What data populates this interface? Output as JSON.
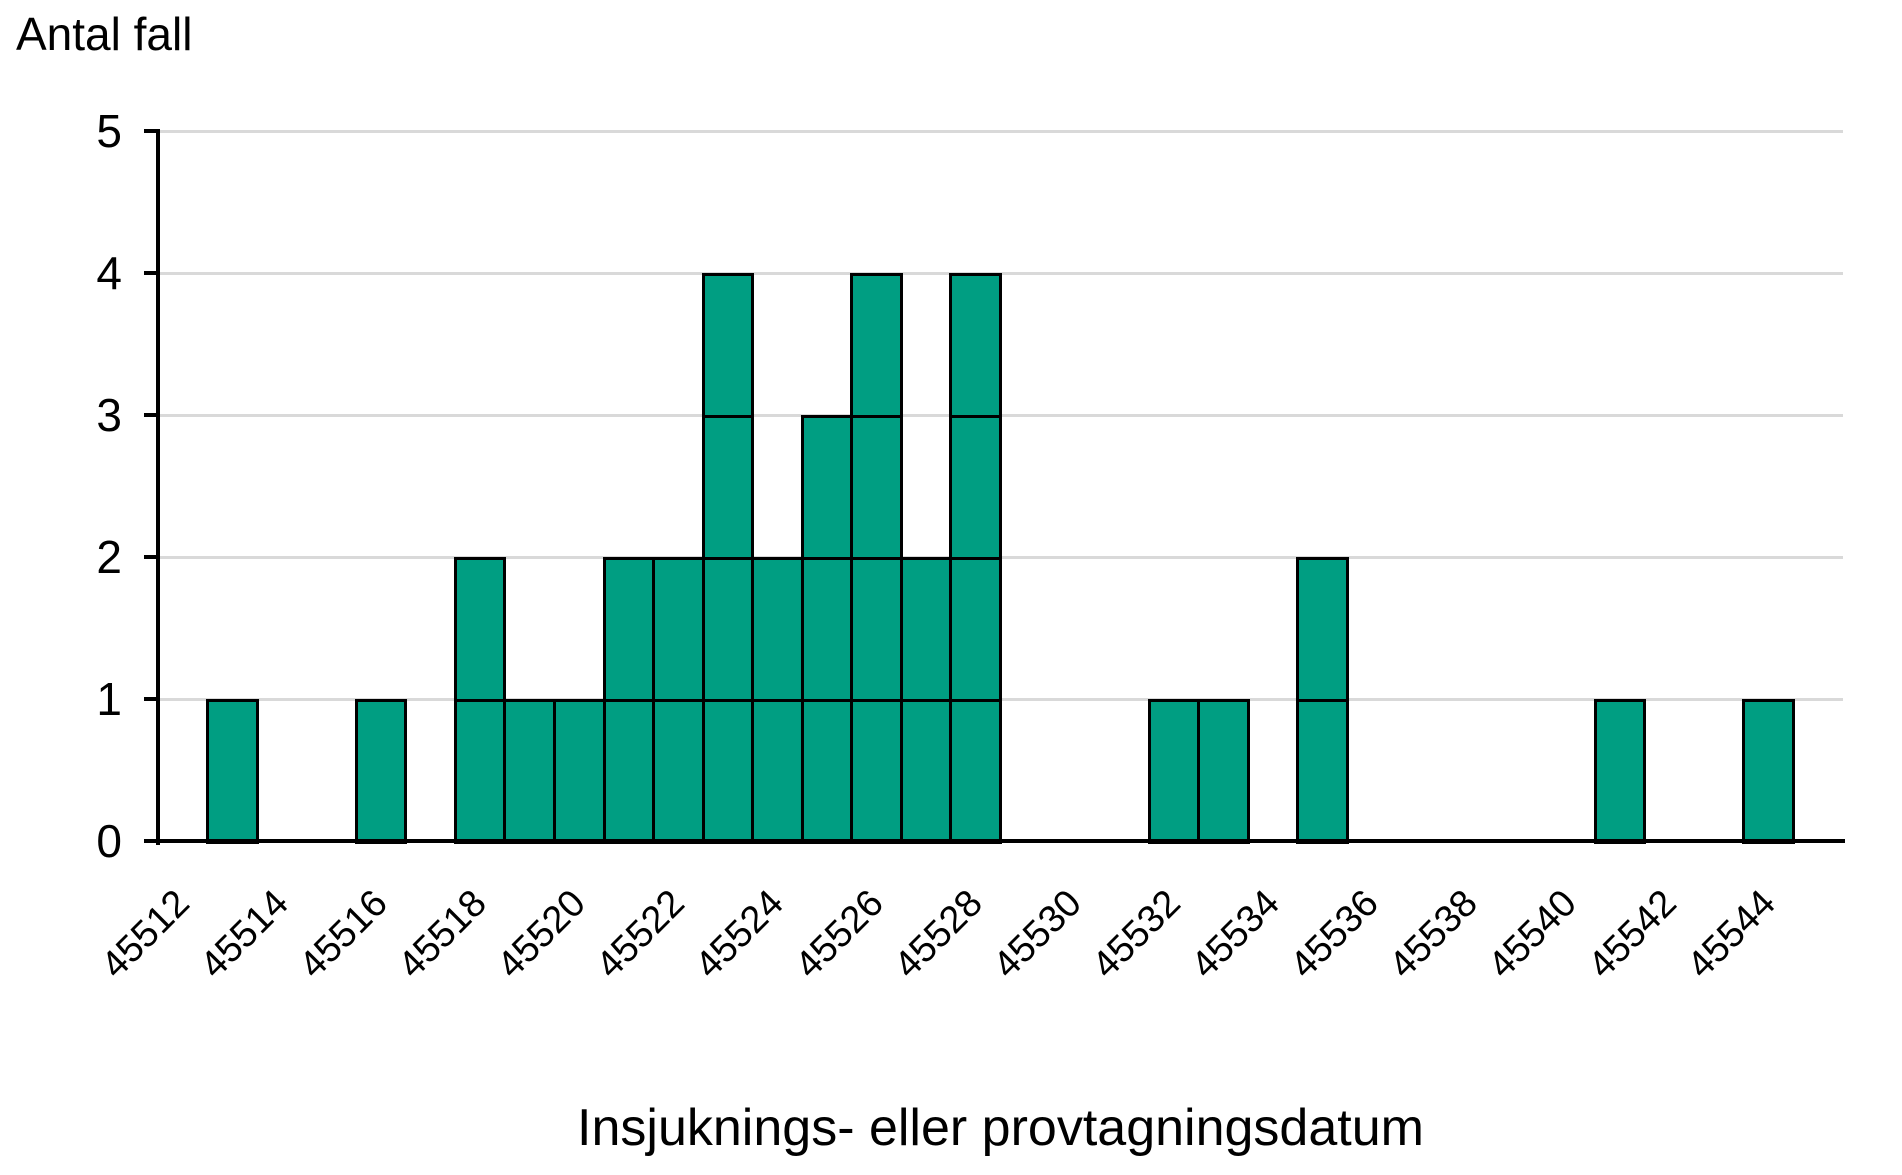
{
  "chart_data": {
    "type": "bar",
    "subtype": "epidemic-curve-unit-boxes",
    "ylabel": "Antal fall",
    "xlabel": "Insjuknings- eller provtagningsdatum",
    "categories": [
      45512,
      45513,
      45514,
      45515,
      45516,
      45517,
      45518,
      45519,
      45520,
      45521,
      45522,
      45523,
      45524,
      45525,
      45526,
      45527,
      45528,
      45529,
      45530,
      45531,
      45532,
      45533,
      45534,
      45535,
      45536,
      45537,
      45538,
      45539,
      45540,
      45541,
      45542,
      45543,
      45544,
      45545
    ],
    "values": [
      0,
      1,
      0,
      0,
      1,
      0,
      2,
      1,
      1,
      2,
      2,
      4,
      2,
      3,
      4,
      2,
      4,
      0,
      0,
      0,
      1,
      1,
      0,
      2,
      0,
      0,
      0,
      0,
      0,
      1,
      0,
      0,
      1,
      0
    ],
    "x_tick_labels": [
      "45512",
      "45514",
      "45516",
      "45518",
      "45520",
      "45522",
      "45524",
      "45526",
      "45528",
      "45530",
      "45532",
      "45534",
      "45536",
      "45538",
      "45540",
      "45542",
      "45544"
    ],
    "x_tick_step": 2,
    "y_tick_labels": [
      "0",
      "1",
      "2",
      "3",
      "4",
      "5"
    ],
    "ylim": [
      0,
      5
    ],
    "grid": "horizontal",
    "legend": "none",
    "colors": {
      "bar_fill": "#009E82",
      "bar_border": "#000000",
      "gridline": "#D9D9D9",
      "axis": "#000000",
      "text": "#000000",
      "background": "#FFFFFF"
    }
  }
}
